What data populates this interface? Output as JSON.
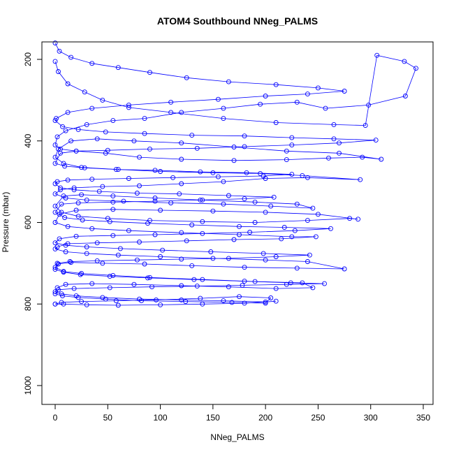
{
  "chart_data": {
    "type": "scatter",
    "title": "ATOM4 Southbound NNeg_PALMS",
    "xlabel": "NNeg_PALMS",
    "ylabel": "Pressure (mbar)",
    "xlim": [
      0,
      350
    ],
    "ylim": [
      1030,
      155
    ],
    "y_reversed": true,
    "x_ticks": [
      0,
      50,
      100,
      150,
      200,
      250,
      300,
      350
    ],
    "y_ticks": [
      200,
      400,
      600,
      800,
      1000
    ],
    "grid": false,
    "legend": "none",
    "marker": "open-circle",
    "connected": true,
    "series_color": "#0000ff",
    "series": [
      {
        "points": [
          [
            0,
            205
          ],
          [
            3,
            230
          ],
          [
            12,
            260
          ],
          [
            28,
            280
          ],
          [
            45,
            300
          ],
          [
            70,
            318
          ],
          [
            110,
            330
          ],
          [
            160,
            345
          ],
          [
            210,
            355
          ],
          [
            265,
            360
          ],
          [
            295,
            362
          ],
          [
            306,
            190
          ],
          [
            332,
            205
          ],
          [
            343,
            222
          ],
          [
            333,
            290
          ],
          [
            298,
            312
          ],
          [
            257,
            320
          ],
          [
            230,
            305
          ],
          [
            195,
            310
          ],
          [
            160,
            320
          ],
          [
            120,
            330
          ],
          [
            85,
            345
          ],
          [
            55,
            350
          ],
          [
            30,
            360
          ],
          [
            10,
            375
          ],
          [
            2,
            390
          ],
          [
            0,
            410
          ],
          [
            5,
            420
          ],
          [
            20,
            425
          ],
          [
            48,
            430
          ],
          [
            80,
            440
          ],
          [
            120,
            445
          ],
          [
            170,
            448
          ],
          [
            220,
            446
          ],
          [
            260,
            442
          ],
          [
            292,
            440
          ],
          [
            310,
            445
          ],
          [
            270,
            430
          ],
          [
            220,
            425
          ],
          [
            170,
            415
          ],
          [
            120,
            405
          ],
          [
            75,
            400
          ],
          [
            40,
            395
          ],
          [
            15,
            400
          ],
          [
            3,
            420
          ],
          [
            0,
            440
          ],
          [
            8,
            455
          ],
          [
            25,
            465
          ],
          [
            60,
            470
          ],
          [
            100,
            475
          ],
          [
            150,
            478
          ],
          [
            195,
            480
          ],
          [
            235,
            485
          ],
          [
            290,
            495
          ],
          [
            240,
            490
          ],
          [
            200,
            492
          ],
          [
            160,
            500
          ],
          [
            120,
            505
          ],
          [
            80,
            510
          ],
          [
            45,
            512
          ],
          [
            18,
            515
          ],
          [
            5,
            520
          ],
          [
            0,
            530
          ],
          [
            10,
            540
          ],
          [
            30,
            545
          ],
          [
            65,
            548
          ],
          [
            110,
            552
          ],
          [
            160,
            555
          ],
          [
            205,
            560
          ],
          [
            245,
            565
          ],
          [
            230,
            555
          ],
          [
            190,
            550
          ],
          [
            140,
            545
          ],
          [
            95,
            540
          ],
          [
            55,
            535
          ],
          [
            25,
            532
          ],
          [
            8,
            535
          ],
          [
            0,
            560
          ],
          [
            6,
            575
          ],
          [
            22,
            585
          ],
          [
            50,
            590
          ],
          [
            90,
            595
          ],
          [
            140,
            598
          ],
          [
            190,
            600
          ],
          [
            240,
            595
          ],
          [
            280,
            590
          ],
          [
            288,
            592
          ],
          [
            250,
            580
          ],
          [
            200,
            575
          ],
          [
            150,
            572
          ],
          [
            100,
            570
          ],
          [
            55,
            568
          ],
          [
            20,
            570
          ],
          [
            4,
            580
          ],
          [
            0,
            600
          ],
          [
            12,
            610
          ],
          [
            35,
            615
          ],
          [
            70,
            620
          ],
          [
            120,
            625
          ],
          [
            175,
            630
          ],
          [
            225,
            635
          ],
          [
            248,
            635
          ],
          [
            215,
            640
          ],
          [
            170,
            642
          ],
          [
            125,
            645
          ],
          [
            80,
            648
          ],
          [
            40,
            650
          ],
          [
            12,
            652
          ],
          [
            2,
            660
          ],
          [
            0,
            665
          ],
          [
            10,
            672
          ],
          [
            30,
            676
          ],
          [
            60,
            680
          ],
          [
            100,
            684
          ],
          [
            150,
            688
          ],
          [
            200,
            692
          ],
          [
            240,
            696
          ],
          [
            275,
            714
          ],
          [
            230,
            712
          ],
          [
            180,
            710
          ],
          [
            130,
            706
          ],
          [
            85,
            702
          ],
          [
            45,
            700
          ],
          [
            15,
            698
          ],
          [
            3,
            702
          ],
          [
            0,
            710
          ],
          [
            8,
            720
          ],
          [
            25,
            725
          ],
          [
            55,
            730
          ],
          [
            90,
            735
          ],
          [
            140,
            740
          ],
          [
            190,
            745
          ],
          [
            235,
            748
          ],
          [
            245,
            760
          ],
          [
            210,
            762
          ],
          [
            165,
            758
          ],
          [
            120,
            755
          ],
          [
            75,
            752
          ],
          [
            35,
            750
          ],
          [
            10,
            752
          ],
          [
            2,
            760
          ],
          [
            0,
            770
          ],
          [
            6,
            775
          ],
          [
            20,
            780
          ],
          [
            45,
            784
          ],
          [
            80,
            788
          ],
          [
            120,
            790
          ],
          [
            160,
            792
          ],
          [
            200,
            795
          ],
          [
            210,
            793
          ],
          [
            180,
            798
          ],
          [
            140,
            800
          ],
          [
            100,
            802
          ],
          [
            60,
            803
          ],
          [
            30,
            802
          ],
          [
            8,
            800
          ],
          [
            0,
            800
          ]
        ]
      },
      {
        "points": [
          [
            0,
            160
          ],
          [
            4,
            180
          ],
          [
            15,
            195
          ],
          [
            35,
            210
          ],
          [
            60,
            220
          ],
          [
            90,
            232
          ],
          [
            125,
            245
          ],
          [
            165,
            255
          ],
          [
            210,
            262
          ],
          [
            250,
            270
          ],
          [
            275,
            278
          ],
          [
            240,
            285
          ],
          [
            200,
            290
          ],
          [
            155,
            298
          ],
          [
            110,
            305
          ],
          [
            70,
            312
          ],
          [
            35,
            320
          ],
          [
            12,
            330
          ],
          [
            1,
            345
          ],
          [
            0,
            350
          ],
          [
            7,
            365
          ],
          [
            22,
            372
          ],
          [
            48,
            378
          ],
          [
            85,
            382
          ],
          [
            130,
            386
          ],
          [
            180,
            388
          ],
          [
            225,
            392
          ],
          [
            265,
            395
          ],
          [
            305,
            398
          ],
          [
            270,
            405
          ],
          [
            225,
            410
          ],
          [
            180,
            414
          ],
          [
            135,
            418
          ],
          [
            90,
            420
          ],
          [
            50,
            423
          ],
          [
            20,
            425
          ],
          [
            5,
            430
          ],
          [
            0,
            455
          ],
          [
            9,
            462
          ],
          [
            28,
            466
          ],
          [
            58,
            470
          ],
          [
            95,
            472
          ],
          [
            138,
            476
          ],
          [
            182,
            478
          ],
          [
            225,
            482
          ],
          [
            198,
            486
          ],
          [
            155,
            488
          ],
          [
            112,
            490
          ],
          [
            70,
            492
          ],
          [
            35,
            494
          ],
          [
            12,
            496
          ],
          [
            2,
            500
          ],
          [
            0,
            505
          ],
          [
            5,
            515
          ],
          [
            18,
            520
          ],
          [
            42,
            524
          ],
          [
            78,
            528
          ],
          [
            118,
            530
          ],
          [
            165,
            534
          ],
          [
            208,
            538
          ],
          [
            180,
            542
          ],
          [
            138,
            545
          ],
          [
            95,
            548
          ],
          [
            55,
            550
          ],
          [
            22,
            552
          ],
          [
            6,
            555
          ],
          [
            0,
            575
          ],
          [
            9,
            588
          ],
          [
            26,
            594
          ],
          [
            52,
            598
          ],
          [
            88,
            602
          ],
          [
            130,
            606
          ],
          [
            175,
            610
          ],
          [
            218,
            612
          ],
          [
            262,
            615
          ],
          [
            228,
            620
          ],
          [
            185,
            624
          ],
          [
            140,
            627
          ],
          [
            95,
            630
          ],
          [
            55,
            632
          ],
          [
            20,
            634
          ],
          [
            4,
            640
          ],
          [
            0,
            650
          ],
          [
            10,
            656
          ],
          [
            30,
            660
          ],
          [
            62,
            664
          ],
          [
            102,
            668
          ],
          [
            148,
            672
          ],
          [
            198,
            676
          ],
          [
            242,
            680
          ],
          [
            210,
            684
          ],
          [
            165,
            688
          ],
          [
            120,
            690
          ],
          [
            78,
            692
          ],
          [
            40,
            694
          ],
          [
            14,
            696
          ],
          [
            2,
            700
          ],
          [
            0,
            715
          ],
          [
            8,
            722
          ],
          [
            24,
            728
          ],
          [
            52,
            732
          ],
          [
            88,
            736
          ],
          [
            132,
            740
          ],
          [
            180,
            744
          ],
          [
            224,
            748
          ],
          [
            256,
            750
          ],
          [
            220,
            752
          ],
          [
            178,
            754
          ],
          [
            135,
            756
          ],
          [
            92,
            758
          ],
          [
            52,
            760
          ],
          [
            18,
            762
          ],
          [
            3,
            765
          ],
          [
            0,
            775
          ],
          [
            7,
            780
          ],
          [
            22,
            784
          ],
          [
            48,
            788
          ],
          [
            82,
            792
          ],
          [
            124,
            794
          ],
          [
            168,
            796
          ],
          [
            200,
            798
          ],
          [
            205,
            785
          ],
          [
            175,
            782
          ],
          [
            138,
            786
          ],
          [
            96,
            790
          ],
          [
            58,
            792
          ],
          [
            25,
            794
          ],
          [
            6,
            796
          ],
          [
            0,
            800
          ]
        ]
      }
    ]
  }
}
